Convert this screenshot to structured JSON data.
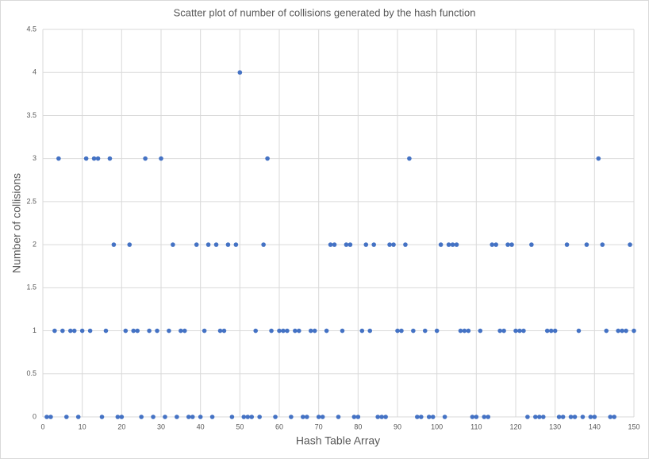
{
  "chart_data": {
    "type": "scatter",
    "title": "Scatter plot of number  of collisions generated by the hash function",
    "x_label": "Hash Table Array",
    "y_label": "Number of collisions",
    "x": [
      1,
      2,
      3,
      4,
      5,
      6,
      7,
      8,
      9,
      10,
      11,
      12,
      13,
      14,
      15,
      16,
      17,
      18,
      19,
      20,
      21,
      22,
      23,
      24,
      25,
      26,
      27,
      28,
      29,
      30,
      31,
      32,
      33,
      34,
      35,
      36,
      37,
      38,
      39,
      40,
      41,
      42,
      43,
      44,
      45,
      46,
      47,
      48,
      49,
      50,
      51,
      52,
      53,
      54,
      55,
      56,
      57,
      58,
      59,
      60,
      61,
      62,
      63,
      64,
      65,
      66,
      67,
      68,
      69,
      70,
      71,
      72,
      73,
      74,
      75,
      76,
      77,
      78,
      79,
      80,
      81,
      82,
      83,
      84,
      85,
      86,
      87,
      88,
      89,
      90,
      91,
      92,
      93,
      94,
      95,
      96,
      97,
      98,
      99,
      100,
      101,
      102,
      103,
      104,
      105,
      106,
      107,
      108,
      109,
      110,
      111,
      112,
      113,
      114,
      115,
      116,
      117,
      118,
      119,
      120,
      121,
      122,
      123,
      124,
      125,
      126,
      127,
      128,
      129,
      130,
      131,
      132,
      133,
      134,
      135,
      136,
      137,
      138,
      139,
      140,
      141,
      142,
      143,
      144,
      145,
      146,
      147,
      148,
      149,
      150
    ],
    "values": [
      0,
      0,
      1,
      3,
      1,
      0,
      1,
      1,
      0,
      1,
      3,
      1,
      3,
      3,
      0,
      1,
      3,
      2,
      0,
      0,
      1,
      2,
      1,
      1,
      0,
      3,
      1,
      0,
      1,
      3,
      0,
      1,
      2,
      0,
      1,
      1,
      0,
      0,
      2,
      0,
      1,
      2,
      0,
      2,
      1,
      1,
      2,
      0,
      2,
      4,
      0,
      0,
      0,
      1,
      0,
      2,
      3,
      1,
      0,
      1,
      1,
      1,
      0,
      1,
      1,
      0,
      0,
      1,
      1,
      0,
      0,
      1,
      2,
      2,
      0,
      1,
      2,
      2,
      0,
      0,
      1,
      2,
      1,
      2,
      0,
      0,
      0,
      2,
      2,
      1,
      1,
      2,
      3,
      1,
      0,
      0,
      1,
      0,
      0,
      1,
      2,
      0,
      2,
      2,
      2,
      1,
      1,
      1,
      0,
      0,
      1,
      0,
      0,
      2,
      2,
      1,
      1,
      2,
      2,
      1,
      1,
      1,
      0,
      2,
      0,
      0,
      0,
      1,
      1,
      1,
      0,
      0,
      2,
      0,
      0,
      1,
      0,
      2,
      0,
      0,
      3,
      2,
      1,
      0,
      0,
      1,
      1,
      1,
      2,
      1
    ],
    "color": "#4472c4",
    "xlim": [
      0,
      150
    ],
    "xticks": [
      0,
      10,
      20,
      30,
      40,
      50,
      60,
      70,
      80,
      90,
      100,
      110,
      120,
      130,
      140,
      150
    ],
    "ylim": [
      0,
      4.5
    ],
    "yticks": [
      0,
      0.5,
      1,
      1.5,
      2,
      2.5,
      3,
      3.5,
      4,
      4.5
    ],
    "grid": true
  }
}
